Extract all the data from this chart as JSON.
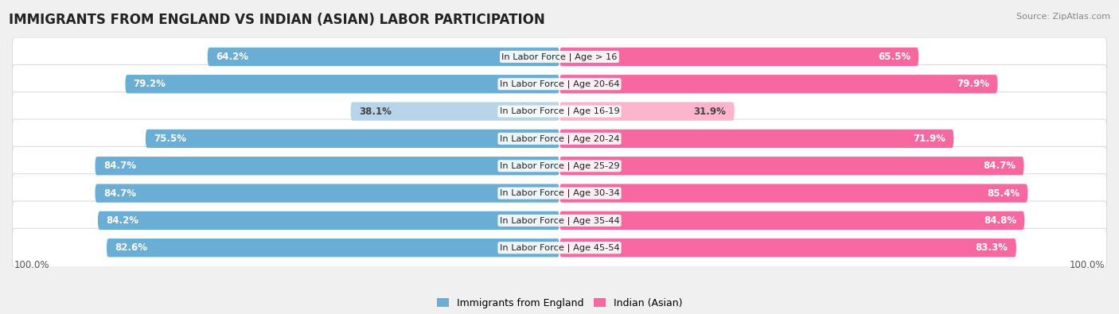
{
  "title": "IMMIGRANTS FROM ENGLAND VS INDIAN (ASIAN) LABOR PARTICIPATION",
  "source": "Source: ZipAtlas.com",
  "categories": [
    "In Labor Force | Age > 16",
    "In Labor Force | Age 20-64",
    "In Labor Force | Age 16-19",
    "In Labor Force | Age 20-24",
    "In Labor Force | Age 25-29",
    "In Labor Force | Age 30-34",
    "In Labor Force | Age 35-44",
    "In Labor Force | Age 45-54"
  ],
  "england_values": [
    64.2,
    79.2,
    38.1,
    75.5,
    84.7,
    84.7,
    84.2,
    82.6
  ],
  "indian_values": [
    65.5,
    79.9,
    31.9,
    71.9,
    84.7,
    85.4,
    84.8,
    83.3
  ],
  "england_color": "#6aaed6",
  "england_color_light": "#b8d4e8",
  "indian_color": "#f768a1",
  "indian_color_light": "#fbb4cb",
  "background_color": "#f0f0f0",
  "row_bg_color": "#ffffff",
  "max_value": 100.0,
  "legend_england": "Immigrants from England",
  "legend_indian": "Indian (Asian)",
  "title_fontsize": 12,
  "value_fontsize": 8.5,
  "category_fontsize": 8.2
}
